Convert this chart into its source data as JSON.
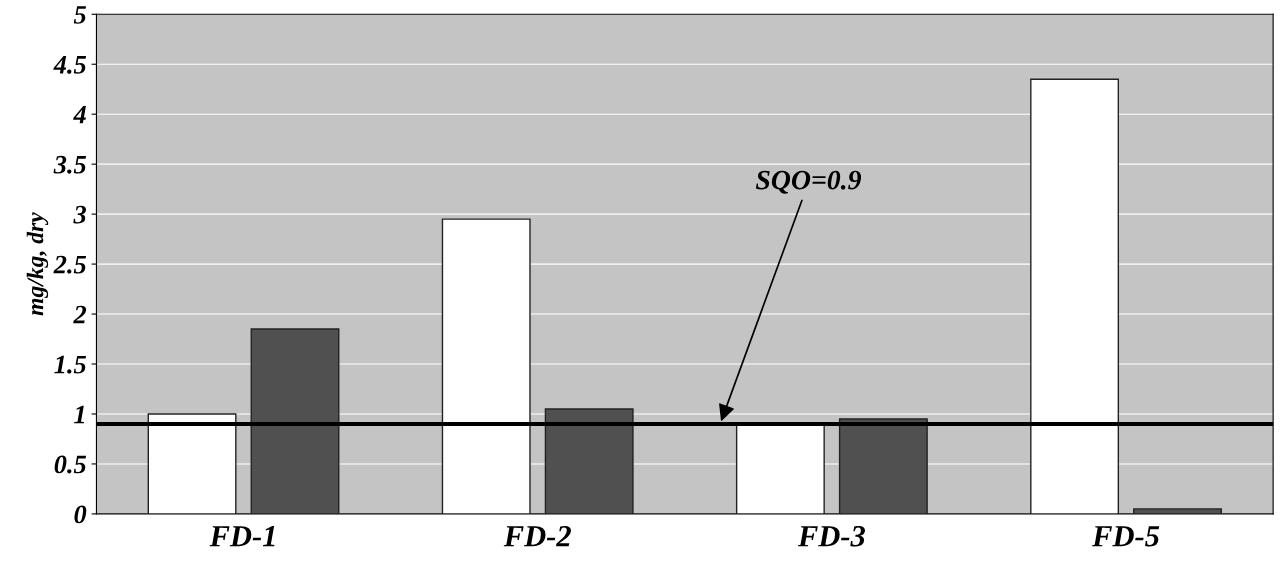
{
  "chart_data": {
    "type": "bar",
    "ylabel": "mg/kg, dry",
    "categories": [
      "FD-1",
      "FD-2",
      "FD-3",
      "FD-5"
    ],
    "series": [
      {
        "color": "#ffffff",
        "values": [
          1.0,
          2.95,
          0.9,
          4.35
        ]
      },
      {
        "color": "#505050",
        "values": [
          1.85,
          1.05,
          0.95,
          0.05
        ]
      }
    ],
    "ylim": [
      0,
      5
    ],
    "yticks": [
      0,
      0.5,
      1,
      1.5,
      2,
      2.5,
      3,
      3.5,
      4,
      4.5,
      5
    ],
    "grid": "y",
    "ref_lines": [
      {
        "axis": "y",
        "value": 0.9,
        "label": "SQO=0.9",
        "color": "#000000"
      }
    ]
  }
}
